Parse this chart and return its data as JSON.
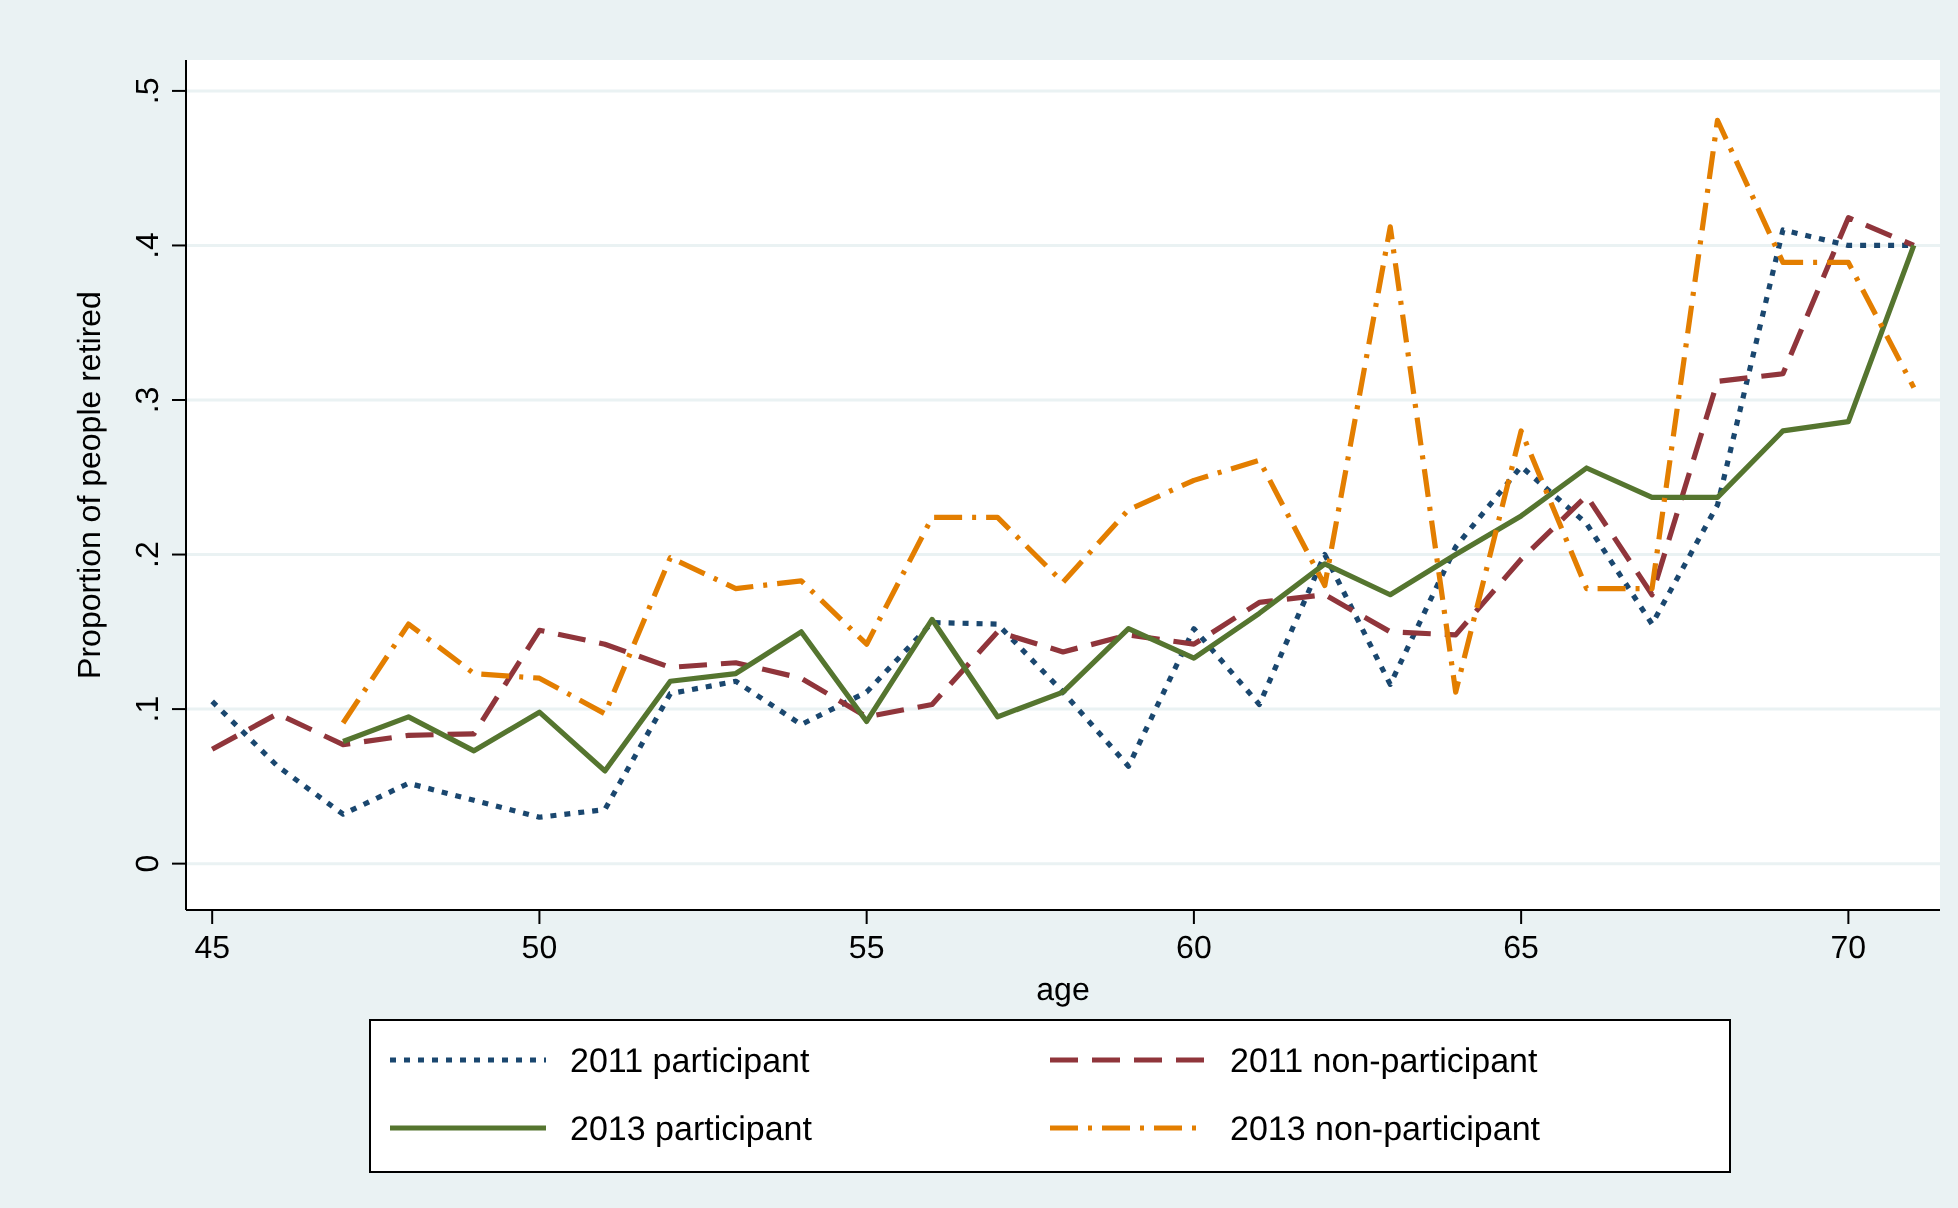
{
  "chart_data": {
    "type": "line",
    "xlabel": "age",
    "ylabel": "Proportion of people retired",
    "xlim": [
      44.6,
      71.4
    ],
    "ylim": [
      -0.03,
      0.52
    ],
    "xticks": [
      45,
      50,
      55,
      60,
      65,
      70
    ],
    "yticks": [
      {
        "value": 0,
        "label": "0"
      },
      {
        "value": 0.1,
        "label": ".1"
      },
      {
        "value": 0.2,
        "label": ".2"
      },
      {
        "value": 0.3,
        "label": ".3"
      },
      {
        "value": 0.4,
        "label": ".4"
      },
      {
        "value": 0.5,
        "label": ".5"
      }
    ],
    "grid": "y",
    "legend": "bottom",
    "marker": "none",
    "x": [
      45,
      46,
      47,
      48,
      49,
      50,
      51,
      52,
      53,
      54,
      55,
      56,
      57,
      58,
      59,
      60,
      61,
      62,
      63,
      64,
      65,
      66,
      67,
      68,
      69,
      70,
      71
    ],
    "series": [
      {
        "name": "2011 participant",
        "color": "#1a476f",
        "line_style": "dotted",
        "values": [
          0.105,
          0.063,
          0.032,
          0.052,
          0.041,
          0.03,
          0.035,
          0.11,
          0.118,
          0.09,
          0.111,
          0.156,
          0.155,
          0.111,
          0.063,
          0.152,
          0.103,
          0.2,
          0.116,
          0.205,
          0.257,
          0.22,
          0.155,
          0.232,
          0.41,
          0.4,
          0.4
        ]
      },
      {
        "name": "2011 non-participant",
        "color": "#90353b",
        "line_style": "dashed",
        "values": [
          0.074,
          0.097,
          0.077,
          0.083,
          0.084,
          0.151,
          0.142,
          0.127,
          0.13,
          0.12,
          0.095,
          0.103,
          0.15,
          0.137,
          0.148,
          0.142,
          0.169,
          0.174,
          0.15,
          0.148,
          0.197,
          0.238,
          0.174,
          0.312,
          0.317,
          0.418,
          0.4
        ]
      },
      {
        "name": "2013 participant",
        "color": "#55752f",
        "line_style": "solid",
        "values": [
          null,
          null,
          0.079,
          0.095,
          0.073,
          0.098,
          0.06,
          0.118,
          0.123,
          0.15,
          0.092,
          0.158,
          0.095,
          0.111,
          0.152,
          0.133,
          0.162,
          0.194,
          0.174,
          0.2,
          0.225,
          0.256,
          0.237,
          0.237,
          0.28,
          0.286,
          0.4
        ]
      },
      {
        "name": "2013 non-participant",
        "color": "#e37e00",
        "line_style": "dashdot",
        "values": [
          null,
          null,
          0.091,
          0.155,
          0.123,
          0.12,
          0.097,
          0.198,
          0.178,
          0.183,
          0.142,
          0.224,
          0.224,
          0.182,
          0.229,
          0.248,
          0.261,
          0.18,
          0.412,
          0.111,
          0.28,
          0.178,
          0.178,
          0.481,
          0.389,
          0.389,
          0.308
        ]
      }
    ]
  }
}
